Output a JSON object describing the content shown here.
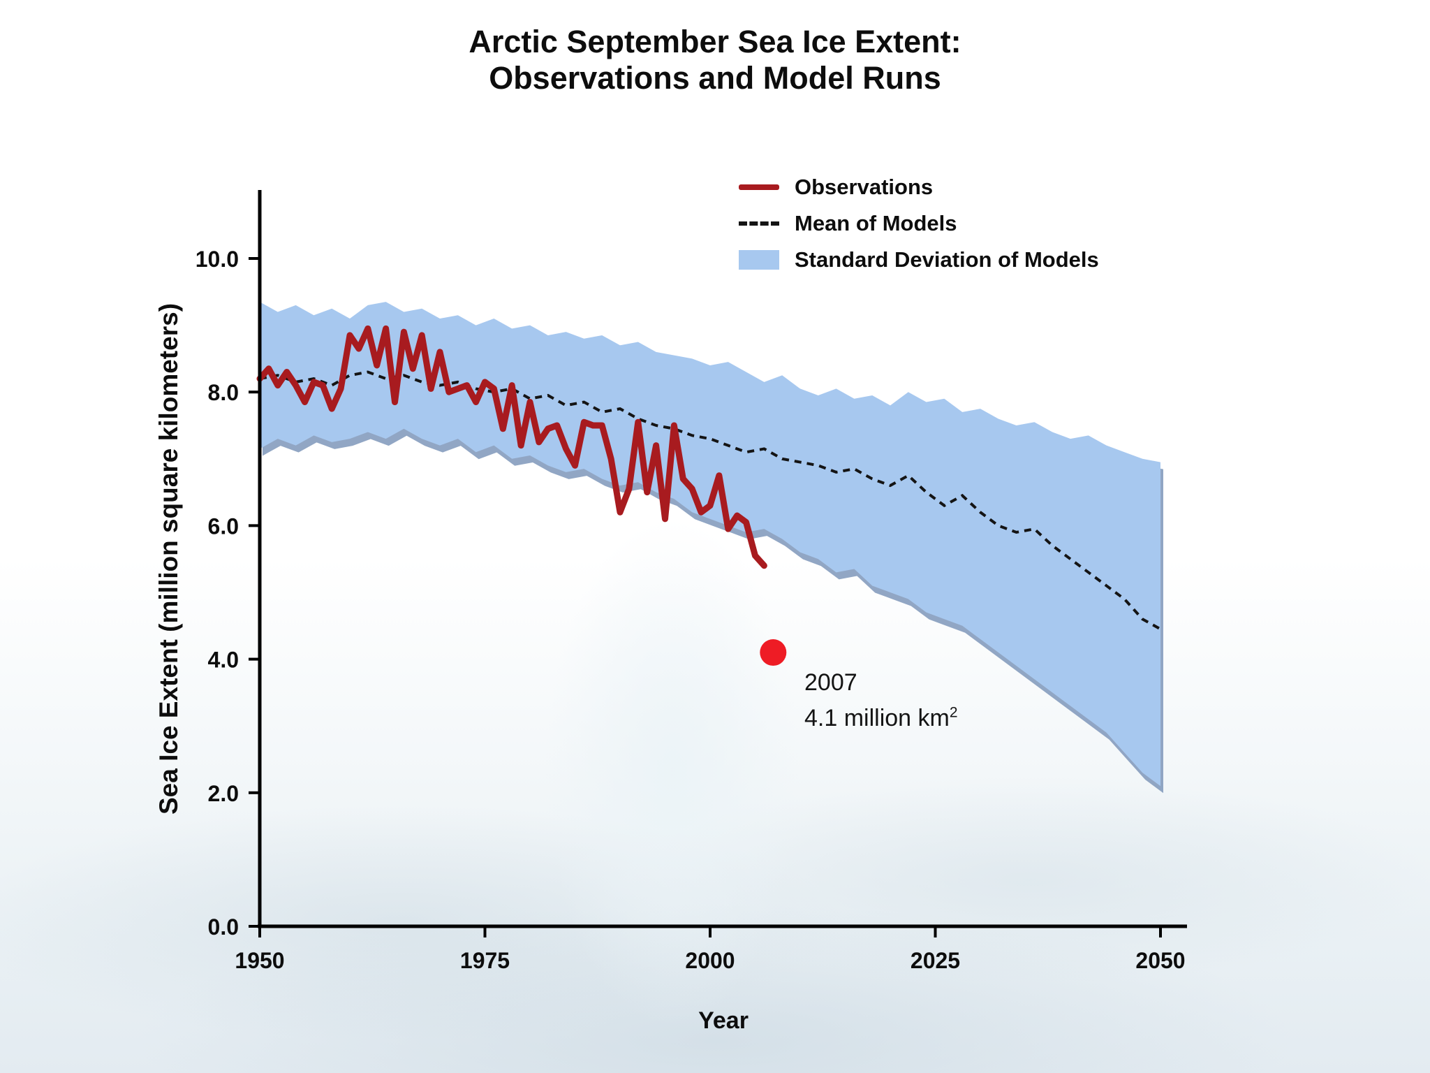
{
  "header": {
    "title_line1": "Arctic September Sea Ice Extent:",
    "title_line2": "Observations and Model Runs"
  },
  "chart_data": {
    "type": "line",
    "title": "Arctic September Sea Ice Extent: Observations and Model Runs",
    "xlabel": "Year",
    "ylabel": "Sea Ice Extent (million square kilometers)",
    "xlim": [
      1950,
      2050
    ],
    "ylim": [
      0,
      11
    ],
    "xticks": [
      1950,
      1975,
      2000,
      2025,
      2050
    ],
    "yticks": [
      "0.0",
      "2.0",
      "4.0",
      "6.0",
      "8.0",
      "10.0"
    ],
    "grid": false,
    "legend_position": "upper-right",
    "legend": [
      {
        "label": "Observations",
        "style": "solid",
        "color": "#a81b1f"
      },
      {
        "label": "Mean of Models",
        "style": "dashed",
        "color": "#141414"
      },
      {
        "label": "Standard Deviation of Models",
        "style": "band",
        "color": "#a7c8ef"
      }
    ],
    "colors": {
      "observations": "#a81b1f",
      "mean": "#141414",
      "band": "#a7c8ef",
      "band_shadow": "#7e97ba",
      "dot": "#ee1c25"
    },
    "models": {
      "years": [
        1950,
        1952,
        1954,
        1956,
        1958,
        1960,
        1962,
        1964,
        1966,
        1968,
        1970,
        1972,
        1974,
        1976,
        1978,
        1980,
        1982,
        1984,
        1986,
        1988,
        1990,
        1992,
        1994,
        1996,
        1998,
        2000,
        2002,
        2004,
        2006,
        2008,
        2010,
        2012,
        2014,
        2016,
        2018,
        2020,
        2022,
        2024,
        2026,
        2028,
        2030,
        2032,
        2034,
        2036,
        2038,
        2040,
        2042,
        2044,
        2046,
        2048,
        2050
      ],
      "upper": [
        9.35,
        9.2,
        9.3,
        9.15,
        9.25,
        9.1,
        9.3,
        9.35,
        9.2,
        9.25,
        9.1,
        9.15,
        9.0,
        9.1,
        8.95,
        9.0,
        8.85,
        8.9,
        8.8,
        8.85,
        8.7,
        8.75,
        8.6,
        8.55,
        8.5,
        8.4,
        8.45,
        8.3,
        8.15,
        8.25,
        8.05,
        7.95,
        8.05,
        7.9,
        7.95,
        7.8,
        8.0,
        7.85,
        7.9,
        7.7,
        7.75,
        7.6,
        7.5,
        7.55,
        7.4,
        7.3,
        7.35,
        7.2,
        7.1,
        7.0,
        6.95
      ],
      "lower": [
        7.15,
        7.3,
        7.2,
        7.35,
        7.25,
        7.3,
        7.4,
        7.3,
        7.45,
        7.3,
        7.2,
        7.3,
        7.1,
        7.2,
        7.0,
        7.05,
        6.9,
        6.8,
        6.85,
        6.7,
        6.6,
        6.65,
        6.5,
        6.4,
        6.2,
        6.1,
        6.0,
        5.9,
        5.95,
        5.8,
        5.6,
        5.5,
        5.3,
        5.35,
        5.1,
        5.0,
        4.9,
        4.7,
        4.6,
        4.5,
        4.3,
        4.1,
        3.9,
        3.7,
        3.5,
        3.3,
        3.1,
        2.9,
        2.6,
        2.3,
        2.1
      ],
      "mean": [
        8.2,
        8.25,
        8.15,
        8.2,
        8.1,
        8.25,
        8.3,
        8.2,
        8.25,
        8.15,
        8.1,
        8.15,
        8.05,
        8.0,
        8.05,
        7.9,
        7.95,
        7.8,
        7.85,
        7.7,
        7.75,
        7.6,
        7.5,
        7.45,
        7.35,
        7.3,
        7.2,
        7.1,
        7.15,
        7.0,
        6.95,
        6.9,
        6.8,
        6.85,
        6.7,
        6.6,
        6.75,
        6.5,
        6.3,
        6.45,
        6.2,
        6.0,
        5.9,
        5.95,
        5.7,
        5.5,
        5.3,
        5.1,
        4.9,
        4.6,
        4.45
      ]
    },
    "observations": {
      "years": [
        1950,
        1951,
        1952,
        1953,
        1954,
        1955,
        1956,
        1957,
        1958,
        1959,
        1960,
        1961,
        1962,
        1963,
        1964,
        1965,
        1966,
        1967,
        1968,
        1969,
        1970,
        1971,
        1972,
        1973,
        1974,
        1975,
        1976,
        1977,
        1978,
        1979,
        1980,
        1981,
        1982,
        1983,
        1984,
        1985,
        1986,
        1987,
        1988,
        1989,
        1990,
        1991,
        1992,
        1993,
        1994,
        1995,
        1996,
        1997,
        1998,
        1999,
        2000,
        2001,
        2002,
        2003,
        2004,
        2005,
        2006
      ],
      "values": [
        8.2,
        8.35,
        8.1,
        8.3,
        8.1,
        7.85,
        8.15,
        8.1,
        7.75,
        8.05,
        8.85,
        8.65,
        8.95,
        8.4,
        8.95,
        7.85,
        8.9,
        8.35,
        8.85,
        8.05,
        8.6,
        8.0,
        8.05,
        8.1,
        7.85,
        8.15,
        8.05,
        7.45,
        8.1,
        7.2,
        7.85,
        7.25,
        7.45,
        7.5,
        7.15,
        6.9,
        7.55,
        7.5,
        7.5,
        7.0,
        6.2,
        6.55,
        7.55,
        6.5,
        7.2,
        6.1,
        7.5,
        6.7,
        6.55,
        6.2,
        6.3,
        6.75,
        5.95,
        6.15,
        6.05,
        5.55,
        5.4
      ]
    },
    "annotation": {
      "year": 2007,
      "value": 4.1,
      "line1": "2007",
      "line2": "4.1 million km",
      "sup": "2"
    }
  }
}
